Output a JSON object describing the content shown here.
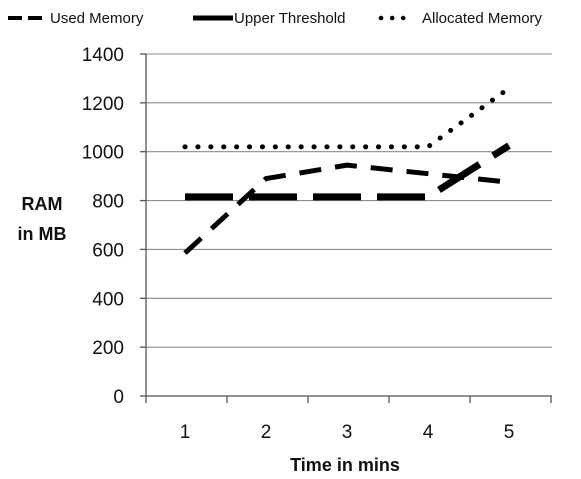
{
  "chart_data": {
    "type": "line",
    "x": [
      1,
      2,
      3,
      4,
      5
    ],
    "series": [
      {
        "name": "Used Memory",
        "values": [
          585,
          890,
          945,
          910,
          875
        ],
        "style": "dashed",
        "color": "#000000"
      },
      {
        "name": "Upper Threshold",
        "values": [
          815,
          815,
          815,
          815,
          1025
        ],
        "style": "long-dashed-thick",
        "color": "#000000"
      },
      {
        "name": "Allocated Memory",
        "values": [
          1020,
          1020,
          1020,
          1020,
          1260
        ],
        "style": "dotted",
        "color": "#000000"
      }
    ],
    "ylim": [
      0,
      1400
    ],
    "yticks": [
      "0",
      "200",
      "400",
      "600",
      "800",
      "1000",
      "1200",
      "1400"
    ],
    "xticks": [
      "1",
      "2",
      "3",
      "4",
      "5"
    ],
    "xlabel": "Time in mins",
    "ylabel_lines": [
      "RAM",
      "in MB"
    ],
    "grid": true,
    "legend_position": "top"
  }
}
